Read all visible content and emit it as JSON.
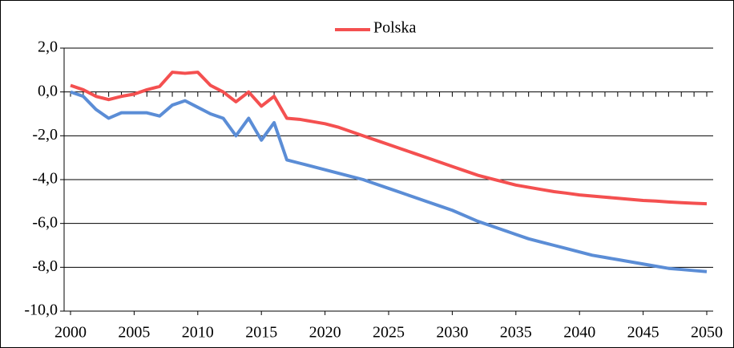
{
  "chart_data": {
    "type": "line",
    "x": [
      2000,
      2001,
      2002,
      2003,
      2004,
      2005,
      2006,
      2007,
      2008,
      2009,
      2010,
      2011,
      2012,
      2013,
      2014,
      2015,
      2016,
      2017,
      2018,
      2019,
      2020,
      2021,
      2022,
      2023,
      2024,
      2025,
      2026,
      2027,
      2028,
      2029,
      2030,
      2031,
      2032,
      2033,
      2034,
      2035,
      2036,
      2037,
      2038,
      2039,
      2040,
      2041,
      2042,
      2043,
      2044,
      2045,
      2046,
      2047,
      2048,
      2049,
      2050
    ],
    "series": [
      {
        "name": "Polska",
        "color": "#f45050",
        "values": [
          0.3,
          0.1,
          -0.2,
          -0.35,
          -0.2,
          -0.1,
          0.1,
          0.25,
          0.9,
          0.85,
          0.9,
          0.3,
          0.0,
          -0.45,
          0.0,
          -0.65,
          -0.2,
          -1.2,
          -1.25,
          -1.35,
          -1.45,
          -1.6,
          -1.8,
          -2.0,
          -2.2,
          -2.4,
          -2.6,
          -2.8,
          -3.0,
          -3.2,
          -3.4,
          -3.6,
          -3.8,
          -3.95,
          -4.1,
          -4.25,
          -4.35,
          -4.45,
          -4.55,
          -4.62,
          -4.7,
          -4.75,
          -4.8,
          -4.85,
          -4.9,
          -4.95,
          -4.98,
          -5.02,
          -5.05,
          -5.08,
          -5.1
        ]
      },
      {
        "color": "#5b8dd6",
        "values": [
          0.0,
          -0.2,
          -0.8,
          -1.2,
          -0.95,
          -0.95,
          -0.95,
          -1.1,
          -0.6,
          -0.4,
          -0.7,
          -1.0,
          -1.2,
          -2.0,
          -1.2,
          -2.2,
          -1.4,
          -3.1,
          -3.25,
          -3.4,
          -3.55,
          -3.7,
          -3.85,
          -4.0,
          -4.2,
          -4.4,
          -4.6,
          -4.8,
          -5.0,
          -5.2,
          -5.4,
          -5.65,
          -5.9,
          -6.1,
          -6.3,
          -6.5,
          -6.7,
          -6.85,
          -7.0,
          -7.15,
          -7.3,
          -7.45,
          -7.55,
          -7.65,
          -7.75,
          -7.85,
          -7.95,
          -8.05,
          -8.1,
          -8.15,
          -8.2
        ]
      }
    ],
    "xlim": [
      2000,
      2050
    ],
    "xticks": [
      2000,
      2005,
      2010,
      2015,
      2020,
      2025,
      2030,
      2035,
      2040,
      2045,
      2050
    ],
    "ylim": [
      -10,
      2
    ],
    "yticks": [
      {
        "value": -10,
        "label": "-10,0"
      },
      {
        "value": -8,
        "label": "-8,0"
      },
      {
        "value": -6,
        "label": "-6,0"
      },
      {
        "value": -4,
        "label": "-4,0"
      },
      {
        "value": -2,
        "label": "-2,0"
      },
      {
        "value": 0,
        "label": "0,0"
      },
      {
        "value": 2,
        "label": "2,0"
      }
    ],
    "grid": true,
    "legend": "top"
  }
}
